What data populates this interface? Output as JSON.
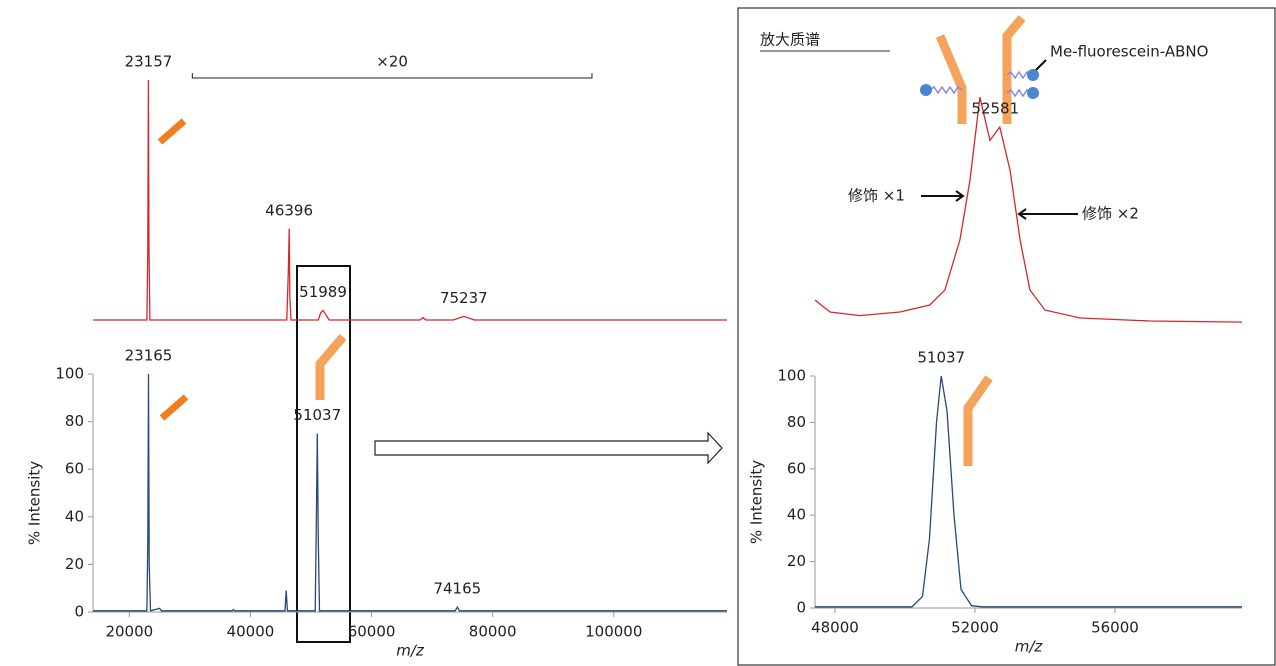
{
  "chart_data": [
    {
      "type": "line",
      "peaks": [
        23157,
        46396,
        51989,
        75237
      ],
      "magnification": {
        "text": "×20",
        "span": [
          30400,
          96400
        ]
      },
      "xlim": [
        14000,
        118700
      ],
      "ylim": [
        0,
        100
      ],
      "series": [
        {
          "color": "#d9262b",
          "x": [
            14000,
            22900,
            23050,
            23157,
            23250,
            23400,
            46000,
            46250,
            46396,
            46500,
            46700,
            51200,
            51600,
            51989,
            52500,
            53000,
            68000,
            68500,
            69000,
            73500,
            75237,
            77000,
            118700
          ],
          "values": [
            0,
            0,
            30,
            100,
            30,
            0,
            0,
            20,
            38,
            10,
            0,
            0,
            3,
            4,
            2,
            0,
            0,
            1,
            0,
            0,
            1.5,
            0,
            0
          ]
        }
      ]
    },
    {
      "type": "line",
      "peaks": [
        23165,
        51037,
        74165
      ],
      "x_label": "m/z",
      "y_label": "% Intensity",
      "xlim": [
        14000,
        118700
      ],
      "xticks": [
        20000,
        40000,
        60000,
        80000,
        100000
      ],
      "ylim": [
        0,
        100
      ],
      "yticks": [
        0,
        20,
        40,
        60,
        80,
        100
      ],
      "series": [
        {
          "color": "#274a78",
          "x": [
            14000,
            22900,
            23050,
            23165,
            23280,
            23500,
            25000,
            25300,
            37000,
            37200,
            37400,
            45700,
            45900,
            46100,
            50700,
            50900,
            51037,
            51200,
            51400,
            73800,
            74165,
            74500,
            118700
          ],
          "values": [
            0.5,
            0.5,
            30,
            100,
            20,
            0.5,
            1.5,
            0.5,
            0.5,
            1,
            0.5,
            0.5,
            9,
            0.5,
            0.5,
            40,
            75,
            30,
            0.5,
            0.5,
            2,
            0.5,
            0.5
          ]
        }
      ]
    },
    {
      "type": "line",
      "title": "放大质谱",
      "peaks": [
        52581
      ],
      "annotations": [
        "修饰 ×1",
        "修饰 ×2",
        "Me-fluorescein-ABNO"
      ],
      "xlim": [
        47430,
        59630
      ],
      "ylim": [
        0,
        100
      ],
      "series": [
        {
          "color": "#d9262b",
          "x": [
            47430,
            47860,
            48710,
            49860,
            50710,
            51140,
            51570,
            51860,
            52140,
            52430,
            52710,
            53000,
            53290,
            53570,
            54000,
            55000,
            57000,
            59630
          ],
          "values": [
            12.5,
            7.5,
            6,
            7.5,
            10.4,
            16.7,
            37.5,
            62.5,
            97,
            79,
            84.6,
            66.7,
            37.5,
            16.7,
            8.3,
            5,
            3.75,
            3.3
          ]
        }
      ]
    },
    {
      "type": "line",
      "peaks": [
        51037
      ],
      "x_label": "m/z",
      "y_label": "% Intensity",
      "xlim": [
        47430,
        59630
      ],
      "xticks": [
        48000,
        52000,
        56000
      ],
      "ylim": [
        0,
        100
      ],
      "yticks": [
        0,
        20,
        40,
        60,
        80,
        100
      ],
      "series": [
        {
          "color": "#274a78",
          "x": [
            47430,
            50200,
            50500,
            50700,
            50900,
            51037,
            51200,
            51400,
            51600,
            51900,
            52200,
            59630
          ],
          "values": [
            0.5,
            0.5,
            5,
            30,
            80,
            100,
            85,
            40,
            8,
            1,
            0.5,
            0.5
          ]
        }
      ]
    }
  ]
}
